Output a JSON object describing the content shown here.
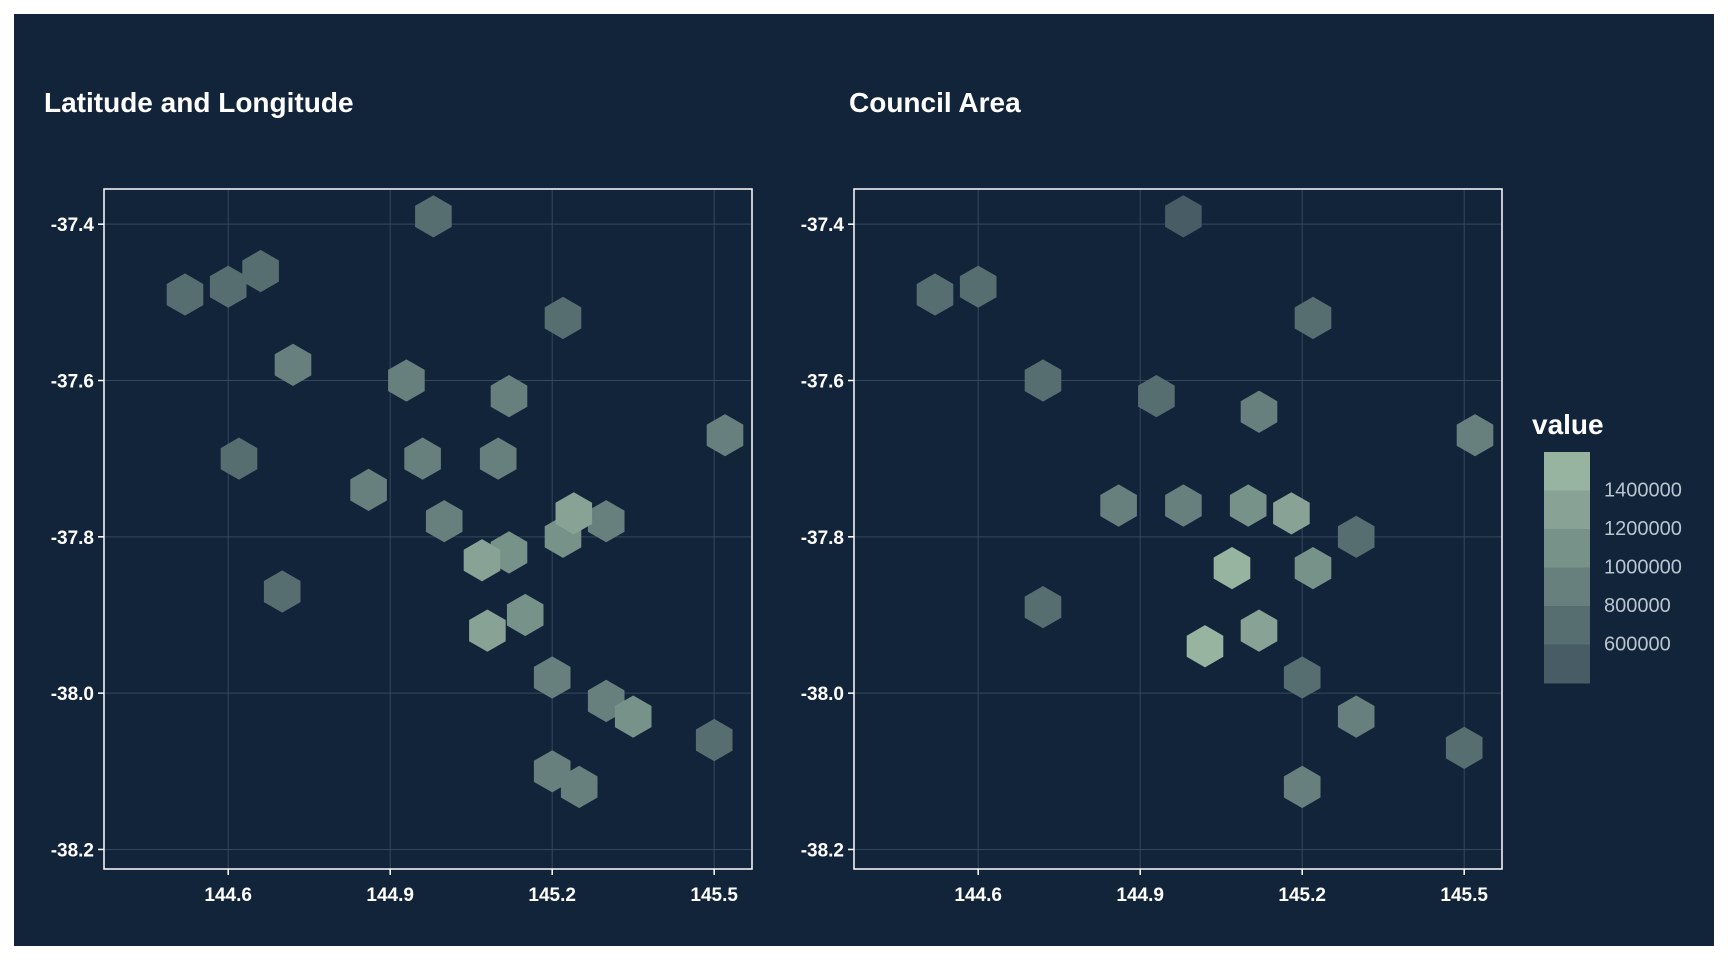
{
  "chart_data": [
    {
      "type": "heatmap",
      "title": "Latitude and Longitude",
      "xlabel": "",
      "ylabel": "",
      "x_ticks": [
        "144.6",
        "144.9",
        "145.2",
        "145.5"
      ],
      "y_ticks": [
        "-37.4",
        "-37.6",
        "-37.8",
        "-38.0",
        "-38.2"
      ],
      "xlim": [
        144.37,
        145.57
      ],
      "ylim": [
        -38.225,
        -37.355
      ],
      "grid": true,
      "series": [
        {
          "x": 144.98,
          "y": -37.39,
          "value": 620000
        },
        {
          "x": 144.6,
          "y": -37.48,
          "value": 780000
        },
        {
          "x": 144.66,
          "y": -37.46,
          "value": 700000
        },
        {
          "x": 144.52,
          "y": -37.49,
          "value": 720000
        },
        {
          "x": 145.22,
          "y": -37.52,
          "value": 700000
        },
        {
          "x": 144.72,
          "y": -37.58,
          "value": 820000
        },
        {
          "x": 144.93,
          "y": -37.6,
          "value": 900000
        },
        {
          "x": 145.12,
          "y": -37.62,
          "value": 820000
        },
        {
          "x": 144.96,
          "y": -37.7,
          "value": 900000
        },
        {
          "x": 145.1,
          "y": -37.7,
          "value": 880000
        },
        {
          "x": 144.86,
          "y": -37.74,
          "value": 850000
        },
        {
          "x": 144.62,
          "y": -37.7,
          "value": 700000
        },
        {
          "x": 145.0,
          "y": -37.78,
          "value": 980000
        },
        {
          "x": 145.12,
          "y": -37.82,
          "value": 1150000
        },
        {
          "x": 145.22,
          "y": -37.8,
          "value": 1050000
        },
        {
          "x": 145.3,
          "y": -37.78,
          "value": 880000
        },
        {
          "x": 145.24,
          "y": -37.77,
          "value": 1250000
        },
        {
          "x": 145.07,
          "y": -37.83,
          "value": 1350000
        },
        {
          "x": 144.7,
          "y": -37.87,
          "value": 780000
        },
        {
          "x": 145.08,
          "y": -37.92,
          "value": 1250000
        },
        {
          "x": 145.15,
          "y": -37.9,
          "value": 1050000
        },
        {
          "x": 145.2,
          "y": -37.98,
          "value": 850000
        },
        {
          "x": 145.3,
          "y": -38.01,
          "value": 900000
        },
        {
          "x": 145.35,
          "y": -38.03,
          "value": 1200000
        },
        {
          "x": 145.2,
          "y": -38.1,
          "value": 820000
        },
        {
          "x": 145.25,
          "y": -38.12,
          "value": 920000
        },
        {
          "x": 145.5,
          "y": -38.06,
          "value": 700000
        },
        {
          "x": 145.52,
          "y": -37.67,
          "value": 880000
        }
      ]
    },
    {
      "type": "heatmap",
      "title": "Council Area",
      "xlabel": "",
      "ylabel": "",
      "x_ticks": [
        "144.6",
        "144.9",
        "145.2",
        "145.5"
      ],
      "y_ticks": [
        "-37.4",
        "-37.6",
        "-37.8",
        "-38.0",
        "-38.2"
      ],
      "xlim": [
        144.37,
        145.57
      ],
      "ylim": [
        -38.225,
        -37.355
      ],
      "grid": true,
      "series": [
        {
          "x": 144.98,
          "y": -37.39,
          "value": 600000
        },
        {
          "x": 144.6,
          "y": -37.48,
          "value": 780000
        },
        {
          "x": 144.52,
          "y": -37.49,
          "value": 720000
        },
        {
          "x": 145.22,
          "y": -37.52,
          "value": 700000
        },
        {
          "x": 144.72,
          "y": -37.6,
          "value": 620000
        },
        {
          "x": 144.93,
          "y": -37.62,
          "value": 620000
        },
        {
          "x": 145.12,
          "y": -37.64,
          "value": 820000
        },
        {
          "x": 144.86,
          "y": -37.76,
          "value": 900000
        },
        {
          "x": 144.98,
          "y": -37.76,
          "value": 980000
        },
        {
          "x": 145.1,
          "y": -37.76,
          "value": 1100000
        },
        {
          "x": 145.18,
          "y": -37.77,
          "value": 1300000
        },
        {
          "x": 145.07,
          "y": -37.84,
          "value": 1450000
        },
        {
          "x": 145.22,
          "y": -37.84,
          "value": 1100000
        },
        {
          "x": 145.3,
          "y": -37.8,
          "value": 780000
        },
        {
          "x": 144.72,
          "y": -37.89,
          "value": 620000
        },
        {
          "x": 145.02,
          "y": -37.94,
          "value": 1450000
        },
        {
          "x": 145.12,
          "y": -37.92,
          "value": 1250000
        },
        {
          "x": 145.2,
          "y": -37.98,
          "value": 800000
        },
        {
          "x": 145.3,
          "y": -38.03,
          "value": 950000
        },
        {
          "x": 145.2,
          "y": -38.12,
          "value": 850000
        },
        {
          "x": 145.5,
          "y": -38.07,
          "value": 650000
        },
        {
          "x": 145.52,
          "y": -37.67,
          "value": 850000
        }
      ]
    }
  ],
  "legend": {
    "title": "value",
    "labels": [
      "1400000",
      "1200000",
      "1000000",
      "800000",
      "600000"
    ],
    "colors": [
      "#96b4a0",
      "#88a295",
      "#779289",
      "#67807d",
      "#576e70",
      "#475c64"
    ]
  },
  "colors": {
    "background": "#12243a",
    "grid": "#34485c",
    "axis_text": "#ffffff"
  }
}
